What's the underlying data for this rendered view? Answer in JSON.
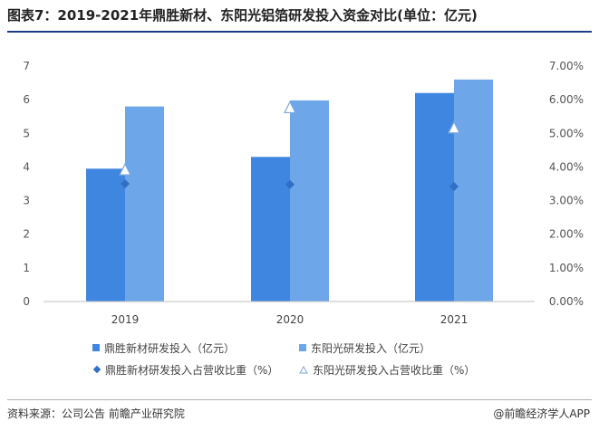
{
  "title": "图表7：2019-2021年鼎胜新材、东阳光铝箔研发投入资金对比(单位：亿元)",
  "chart_data": {
    "type": "bar",
    "categories": [
      "2019",
      "2020",
      "2021"
    ],
    "series": [
      {
        "name": "鼎胜新材研发投入（亿元）",
        "kind": "bar",
        "axis": "left",
        "values": [
          3.95,
          4.3,
          6.2
        ]
      },
      {
        "name": "东阳光研发投入（亿元）",
        "kind": "bar",
        "axis": "left",
        "values": [
          5.8,
          5.98,
          6.6
        ]
      },
      {
        "name": "鼎胜新材研发投入占营收比重（%）",
        "kind": "scatter",
        "marker": "diamond",
        "axis": "right",
        "values": [
          3.5,
          3.48,
          3.42
        ]
      },
      {
        "name": "东阳光研发投入占营收比重（%）",
        "kind": "scatter",
        "marker": "triangle",
        "axis": "right",
        "values": [
          3.9,
          5.75,
          5.15
        ]
      }
    ],
    "y_left": {
      "min": 0,
      "max": 7,
      "ticks": [
        "0",
        "1",
        "2",
        "3",
        "4",
        "5",
        "6",
        "7"
      ]
    },
    "y_right": {
      "min": 0,
      "max": 7,
      "ticks": [
        "0.00%",
        "1.00%",
        "2.00%",
        "3.00%",
        "4.00%",
        "5.00%",
        "6.00%",
        "7.00%"
      ]
    },
    "grid": false,
    "legend_position": "bottom"
  },
  "colors": {
    "dingsheng_bar": "#3f86e0",
    "dongyang_bar": "#6ea6ea",
    "dingsheng_marker": "#2f6fc4",
    "triangle_fill": "#ffffff",
    "triangle_stroke": "#7aa7e0",
    "axis": "#bfbfbf"
  },
  "footer": {
    "source": "资料来源：公司公告 前瞻产业研究院",
    "brand": "@前瞻经济学人APP"
  }
}
